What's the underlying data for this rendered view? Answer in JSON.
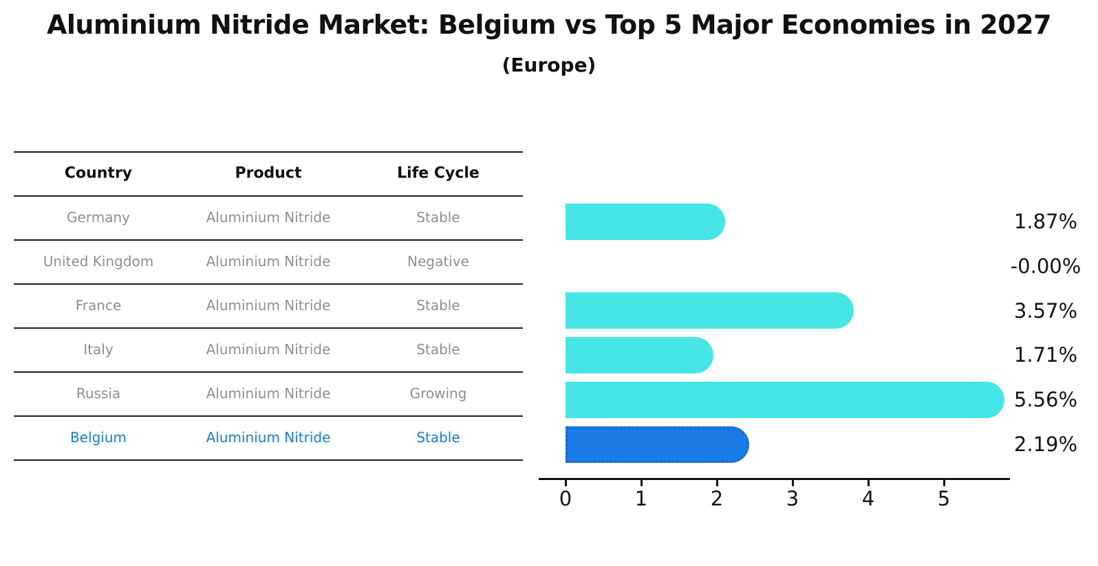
{
  "title": "Aluminium Nitride Market: Belgium vs Top 5 Major Economies in 2027",
  "subtitle": "(Europe)",
  "colors": {
    "bar_default": "#47E6E6",
    "bar_highlight": "#1A7AE8",
    "bar_highlight_border": "#1565D8",
    "table_text": "#8E8E8E",
    "highlight_text": "#2E7EBC",
    "rule_line": "#1C1C1C",
    "axis": "#111111"
  },
  "table": {
    "headers": [
      "Country",
      "Product",
      "Life Cycle"
    ],
    "rows": [
      {
        "country": "Germany",
        "product": "Aluminium Nitride",
        "life_cycle": "Stable",
        "highlighted": false
      },
      {
        "country": "United Kingdom",
        "product": "Aluminium Nitride",
        "life_cycle": "Negative",
        "highlighted": false
      },
      {
        "country": "France",
        "product": "Aluminium Nitride",
        "life_cycle": "Stable",
        "highlighted": false
      },
      {
        "country": "Italy",
        "product": "Aluminium Nitride",
        "life_cycle": "Stable",
        "highlighted": false
      },
      {
        "country": "Russia",
        "product": "Aluminium Nitride",
        "life_cycle": "Growing",
        "highlighted": false
      },
      {
        "country": "Belgium",
        "product": "Aluminium Nitride",
        "life_cycle": "Stable",
        "highlighted": true
      }
    ]
  },
  "chart_data": {
    "type": "bar",
    "orientation": "horizontal",
    "title": "Aluminium Nitride Market: Belgium vs Top 5 Major Economies in 2027 (Europe)",
    "categories": [
      "Germany",
      "United Kingdom",
      "France",
      "Italy",
      "Russia",
      "Belgium"
    ],
    "values": [
      1.87,
      -0.0,
      3.57,
      1.71,
      5.56,
      2.19
    ],
    "value_labels": [
      "1.87%",
      "-0.00%",
      "3.57%",
      "1.71%",
      "5.56%",
      "2.19%"
    ],
    "x_ticks": [
      "0",
      "1",
      "2",
      "3",
      "4",
      "5"
    ],
    "xlim": [
      0,
      5.9
    ],
    "xlabel": "",
    "ylabel": "",
    "grid": false,
    "legend": false,
    "highlighted_category": "Belgium"
  }
}
